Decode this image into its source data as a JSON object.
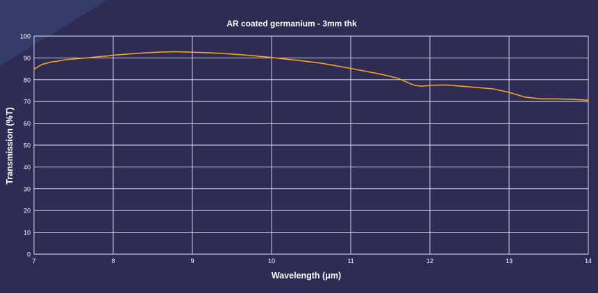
{
  "colors": {
    "background": "#2e2b55",
    "corner_accent": "#3a4a7a",
    "grid": "#e6e6ee",
    "text": "#ffffff",
    "series": "#f2a51a"
  },
  "chart_data": {
    "type": "line",
    "title": "AR coated germanium - 3mm thk",
    "xlabel": "Wavelength (μm)",
    "ylabel": "Transmission (%T)",
    "xlim": [
      7,
      14
    ],
    "ylim": [
      0,
      100
    ],
    "x_ticks": [
      "7",
      "8",
      "9",
      "10",
      "11",
      "12",
      "13",
      "14"
    ],
    "y_ticks": [
      "0",
      "10",
      "20",
      "30",
      "40",
      "50",
      "60",
      "70",
      "80",
      "90",
      "100"
    ],
    "grid": true,
    "legend": "none",
    "series": [
      {
        "color": "#f2a51a",
        "x": [
          7.0,
          7.1,
          7.2,
          7.3,
          7.4,
          7.5,
          7.6,
          7.7,
          7.8,
          7.9,
          8.0,
          8.2,
          8.4,
          8.6,
          8.8,
          9.0,
          9.2,
          9.4,
          9.6,
          9.8,
          10.0,
          10.2,
          10.4,
          10.6,
          10.8,
          11.0,
          11.2,
          11.4,
          11.6,
          11.7,
          11.8,
          11.9,
          12.0,
          12.2,
          12.4,
          12.6,
          12.8,
          13.0,
          13.2,
          13.4,
          13.6,
          13.8,
          14.0
        ],
        "y": [
          84.8,
          87.0,
          88.0,
          88.5,
          89.2,
          89.5,
          89.8,
          90.1,
          90.5,
          90.8,
          91.2,
          91.8,
          92.3,
          92.7,
          92.8,
          92.6,
          92.4,
          92.0,
          91.5,
          90.9,
          90.2,
          89.4,
          88.6,
          87.7,
          86.5,
          85.2,
          83.8,
          82.4,
          80.6,
          79.0,
          77.5,
          77.0,
          77.4,
          77.6,
          77.0,
          76.4,
          75.8,
          74.2,
          72.0,
          71.2,
          71.2,
          71.0,
          70.6
        ]
      }
    ]
  }
}
